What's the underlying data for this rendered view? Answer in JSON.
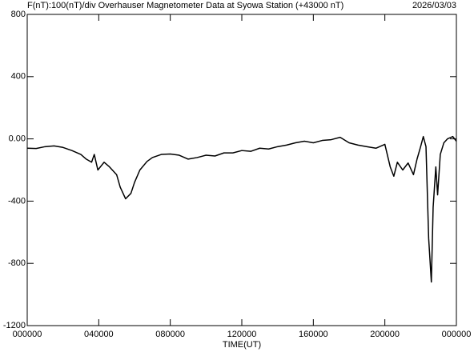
{
  "chart_data": {
    "type": "line",
    "title": "F(nT):100(nT)/div  Overhauser Magnetometer Data at Syowa Station (+43000 nT)",
    "date": "2026/03/03",
    "x_label": "TIME(UT)",
    "xlim": [
      0,
      24
    ],
    "xticks": [
      {
        "value": 0,
        "label": "000000"
      },
      {
        "value": 4,
        "label": "040000"
      },
      {
        "value": 8,
        "label": "080000"
      },
      {
        "value": 12,
        "label": "120000"
      },
      {
        "value": 16,
        "label": "160000"
      },
      {
        "value": 20,
        "label": "200000"
      },
      {
        "value": 24,
        "label": "000000"
      }
    ],
    "ylim": [
      -1200,
      800
    ],
    "yticks": [
      800,
      400,
      {
        "value": 0,
        "label": "0.00"
      },
      -400,
      -800,
      -1200
    ],
    "x": [
      0,
      0.5,
      1,
      1.5,
      2,
      2.5,
      3,
      3.3,
      3.6,
      3.75,
      3.95,
      4.3,
      4.6,
      5,
      5.2,
      5.5,
      5.8,
      6,
      6.3,
      6.7,
      7,
      7.5,
      8,
      8.5,
      9,
      9.5,
      10,
      10.5,
      11,
      11.5,
      12,
      12.5,
      13,
      13.5,
      14,
      14.5,
      15,
      15.5,
      16,
      16.5,
      17,
      17.5,
      18,
      18.5,
      19,
      19.5,
      20,
      20.3,
      20.5,
      20.7,
      21,
      21.3,
      21.6,
      21.8,
      22,
      22.15,
      22.3,
      22.45,
      22.6,
      22.7,
      22.85,
      22.95,
      23.1,
      23.3,
      23.5,
      23.8,
      24
    ],
    "series": [
      {
        "name": "F",
        "color": "#000000",
        "values": [
          -60,
          -62,
          -50,
          -45,
          -55,
          -75,
          -100,
          -130,
          -150,
          -100,
          -200,
          -150,
          -180,
          -230,
          -310,
          -385,
          -350,
          -280,
          -200,
          -145,
          -120,
          -100,
          -97,
          -105,
          -130,
          -120,
          -105,
          -110,
          -90,
          -90,
          -75,
          -80,
          -60,
          -65,
          -50,
          -40,
          -25,
          -15,
          -25,
          -10,
          -5,
          10,
          -25,
          -40,
          -50,
          -60,
          -35,
          -180,
          -240,
          -150,
          -200,
          -155,
          -230,
          -130,
          -50,
          15,
          -50,
          -640,
          -920,
          -440,
          -180,
          -360,
          -100,
          -25,
          0,
          15,
          -15
        ]
      }
    ]
  }
}
